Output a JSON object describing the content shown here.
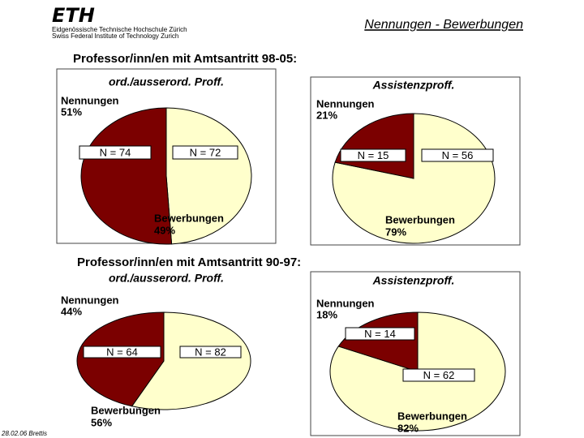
{
  "header": {
    "logo": "ETH",
    "logo_line1": "Eidgenössische Technische Hochschule Zürich",
    "logo_line2": "Swiss Federal Institute of Technology Zurich",
    "title": "Nennungen - Bewerbungen"
  },
  "sections": [
    "Professor/inn/en mit Amtsantritt 98-05:",
    "Professor/inn/en mit Amtsantritt 90-97:"
  ],
  "footer": "28.02.06 Brettis",
  "chart_data": [
    {
      "type": "pie",
      "title": "ord./ausserord. Proff.",
      "categories": [
        "Nennungen",
        "Bewerbungen"
      ],
      "values": [
        51,
        49
      ],
      "value_labels": [
        "51%",
        "49%"
      ],
      "colors": [
        "#7b0000",
        "#ffffcc"
      ],
      "count_labels": [
        "N = 74",
        "N = 72"
      ]
    },
    {
      "type": "pie",
      "title": "Assistenzproff.",
      "categories": [
        "Nennungen",
        "Bewerbungen"
      ],
      "values": [
        21,
        79
      ],
      "value_labels": [
        "21%",
        "79%"
      ],
      "colors": [
        "#7b0000",
        "#ffffcc"
      ],
      "count_labels": [
        "N = 15",
        "N = 56"
      ]
    },
    {
      "type": "pie",
      "title": "ord./ausserord. Proff.",
      "categories": [
        "Nennungen",
        "Bewerbungen"
      ],
      "values": [
        44,
        56
      ],
      "value_labels": [
        "44%",
        "56%"
      ],
      "colors": [
        "#7b0000",
        "#ffffcc"
      ],
      "count_labels": [
        "N = 64",
        "N = 82"
      ]
    },
    {
      "type": "pie",
      "title": "Assistenzproff.",
      "categories": [
        "Nennungen",
        "Bewerbungen"
      ],
      "values": [
        18,
        82
      ],
      "value_labels": [
        "18%",
        "82%"
      ],
      "colors": [
        "#7b0000",
        "#ffffcc"
      ],
      "count_labels": [
        "N = 14",
        "N = 62"
      ]
    }
  ]
}
